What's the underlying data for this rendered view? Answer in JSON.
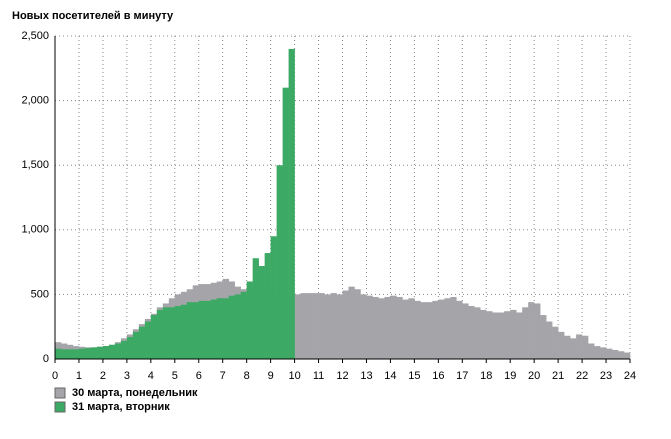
{
  "chart_data": {
    "type": "bar",
    "title": "Новых посетителей в минуту",
    "x": [
      0,
      0.25,
      0.5,
      0.75,
      1,
      1.25,
      1.5,
      1.75,
      2,
      2.25,
      2.5,
      2.75,
      3,
      3.25,
      3.5,
      3.75,
      4,
      4.25,
      4.5,
      4.75,
      5,
      5.25,
      5.5,
      5.75,
      6,
      6.25,
      6.5,
      6.75,
      7,
      7.25,
      7.5,
      7.75,
      8,
      8.25,
      8.5,
      8.75,
      9,
      9.25,
      9.5,
      9.75,
      10,
      10.25,
      10.5,
      10.75,
      11,
      11.25,
      11.5,
      11.75,
      12,
      12.25,
      12.5,
      12.75,
      13,
      13.25,
      13.5,
      13.75,
      14,
      14.25,
      14.5,
      14.75,
      15,
      15.25,
      15.5,
      15.75,
      16,
      16.25,
      16.5,
      16.75,
      17,
      17.25,
      17.5,
      17.75,
      18,
      18.25,
      18.5,
      18.75,
      19,
      19.25,
      19.5,
      19.75,
      20,
      20.25,
      20.5,
      20.75,
      21,
      21.25,
      21.5,
      21.75,
      22,
      22.25,
      22.5,
      22.75,
      23,
      23.25,
      23.5,
      23.75
    ],
    "bar_width": 0.25,
    "series": [
      {
        "name": "30 марта, понедельник",
        "color": "#a5a5a9",
        "values": [
          130,
          120,
          110,
          100,
          95,
          90,
          90,
          95,
          100,
          110,
          130,
          160,
          190,
          230,
          270,
          310,
          350,
          400,
          430,
          470,
          500,
          520,
          540,
          570,
          580,
          580,
          590,
          600,
          620,
          600,
          560,
          540,
          540,
          530,
          550,
          540,
          530,
          520,
          510,
          500,
          500,
          510,
          510,
          510,
          510,
          500,
          510,
          500,
          530,
          560,
          540,
          500,
          490,
          480,
          470,
          480,
          490,
          480,
          460,
          470,
          450,
          440,
          440,
          450,
          460,
          470,
          480,
          450,
          430,
          410,
          400,
          380,
          370,
          360,
          360,
          370,
          380,
          360,
          400,
          440,
          430,
          340,
          290,
          250,
          210,
          180,
          160,
          190,
          180,
          120,
          100,
          90,
          80,
          70,
          60,
          50
        ]
      },
      {
        "name": "31 марта, вторник",
        "color": "#3caa64",
        "values": [
          80,
          75,
          75,
          75,
          80,
          85,
          90,
          95,
          100,
          110,
          120,
          140,
          170,
          210,
          250,
          290,
          340,
          380,
          400,
          400,
          410,
          420,
          440,
          440,
          450,
          450,
          460,
          470,
          470,
          490,
          500,
          520,
          600,
          780,
          720,
          820,
          950,
          1500,
          2100,
          2400,
          null,
          null,
          null,
          null,
          null,
          null,
          null,
          null,
          null,
          null,
          null,
          null,
          null,
          null,
          null,
          null,
          null,
          null,
          null,
          null,
          null,
          null,
          null,
          null,
          null,
          null,
          null,
          null,
          null,
          null,
          null,
          null,
          null,
          null,
          null,
          null,
          null,
          null,
          null,
          null,
          null,
          null,
          null,
          null,
          null,
          null,
          null,
          null,
          null,
          null,
          null,
          null,
          null,
          null,
          null,
          null
        ]
      }
    ],
    "xlim": [
      0,
      24
    ],
    "xticks": [
      0,
      1,
      2,
      3,
      4,
      5,
      6,
      7,
      8,
      9,
      10,
      11,
      12,
      13,
      14,
      15,
      16,
      17,
      18,
      19,
      20,
      21,
      22,
      23,
      24
    ],
    "ylim": [
      0,
      2500
    ],
    "yticks": [
      0,
      500,
      {
        "value": 1000,
        "label": "1,000"
      },
      {
        "value": 1500,
        "label": "1,500"
      },
      {
        "value": 2000,
        "label": "2,000"
      },
      {
        "value": 2500,
        "label": "2,500"
      }
    ],
    "grid": true,
    "legend": "bottom-left"
  }
}
